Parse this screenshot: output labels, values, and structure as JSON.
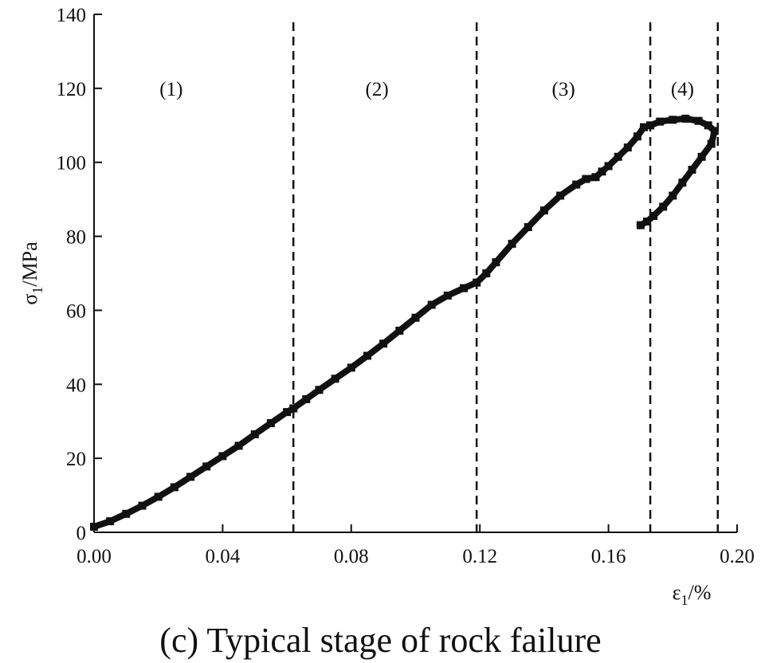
{
  "caption": "(c) Typical stage of rock failure",
  "chart_data": {
    "type": "line",
    "xlabel": "ε1/%",
    "ylabel": "σ1/MPa",
    "xlim": [
      0,
      0.2
    ],
    "ylim": [
      0,
      140
    ],
    "x_ticks": [
      "0.00",
      "0.04",
      "0.08",
      "0.12",
      "0.16",
      "0.20"
    ],
    "y_ticks": [
      "0",
      "20",
      "40",
      "60",
      "80",
      "100",
      "120",
      "140"
    ],
    "grid": false,
    "stage_boundaries": [
      0.062,
      0.119,
      0.173,
      0.194
    ],
    "stages": [
      {
        "label": "(1)",
        "x": 0.024
      },
      {
        "label": "(2)",
        "x": 0.088
      },
      {
        "label": "(3)",
        "x": 0.146
      },
      {
        "label": "(4)",
        "x": 0.183
      }
    ],
    "stage_label_y": 120,
    "series": [
      {
        "color": "#111111",
        "x": [
          0.0,
          0.005,
          0.01,
          0.015,
          0.02,
          0.025,
          0.03,
          0.035,
          0.04,
          0.045,
          0.05,
          0.055,
          0.06,
          0.062,
          0.066,
          0.07,
          0.075,
          0.08,
          0.085,
          0.09,
          0.095,
          0.1,
          0.105,
          0.11,
          0.115,
          0.119,
          0.122,
          0.125,
          0.13,
          0.135,
          0.14,
          0.145,
          0.15,
          0.153,
          0.156,
          0.158,
          0.16,
          0.163,
          0.166,
          0.169,
          0.171,
          0.173,
          0.176,
          0.18,
          0.184,
          0.188,
          0.191,
          0.193,
          0.192,
          0.189,
          0.186,
          0.183,
          0.18,
          0.177,
          0.174,
          0.172,
          0.17
        ],
        "y": [
          1.5,
          3.0,
          5.0,
          7.2,
          9.6,
          12.2,
          15.0,
          17.8,
          20.6,
          23.4,
          26.5,
          29.5,
          32.5,
          33.5,
          36.0,
          38.5,
          41.5,
          44.5,
          47.7,
          51.0,
          54.5,
          58.0,
          61.5,
          64.0,
          66.0,
          67.5,
          70.0,
          73.0,
          78.0,
          82.5,
          87.0,
          91.0,
          94.0,
          95.5,
          96.0,
          97.5,
          99.0,
          101.5,
          104.0,
          107.0,
          109.5,
          110.0,
          111.0,
          111.5,
          111.8,
          111.2,
          110.0,
          108.5,
          105.0,
          101.5,
          98.0,
          94.5,
          91.0,
          88.0,
          85.5,
          84.0,
          83.0
        ]
      }
    ]
  }
}
